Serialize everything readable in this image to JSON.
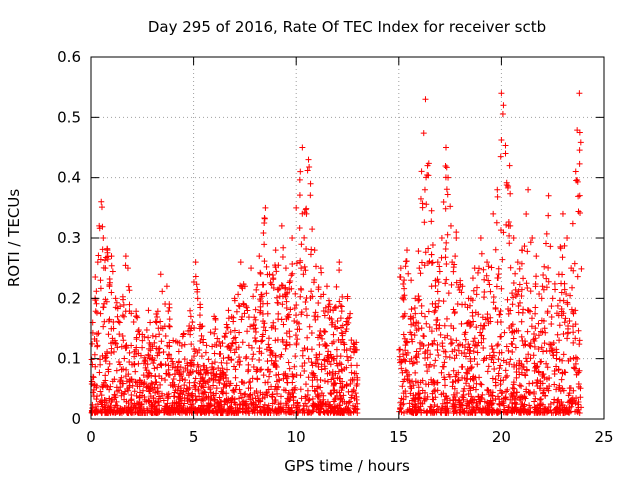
{
  "chart_data": {
    "type": "scatter",
    "title": "Day 295 of 2016, Rate Of TEC Index for receiver sctb",
    "xlabel": "GPS time / hours",
    "ylabel": "ROTI / TECUs",
    "xlim": [
      0,
      25
    ],
    "ylim": [
      0,
      0.6
    ],
    "x_ticks": [
      0,
      5,
      10,
      15,
      20,
      25
    ],
    "x_tick_labels": [
      "0",
      "5",
      "10",
      "15",
      "20",
      "25"
    ],
    "y_ticks": [
      0,
      0.1,
      0.2,
      0.3,
      0.4,
      0.5,
      0.6
    ],
    "y_tick_labels": [
      "0",
      "0.1",
      "0.2",
      "0.3",
      "0.4",
      "0.5",
      "0.6"
    ],
    "grid": true,
    "marker": "+",
    "color": "#ff0000",
    "data_gap_hours": [
      13.0,
      15.0
    ],
    "series": [
      {
        "name": "ROTI",
        "points": [
          [
            0.1,
            0.07
          ],
          [
            0.2,
            0.2
          ],
          [
            0.3,
            0.12
          ],
          [
            0.4,
            0.32
          ],
          [
            0.5,
            0.36
          ],
          [
            0.6,
            0.3
          ],
          [
            0.7,
            0.25
          ],
          [
            0.8,
            0.28
          ],
          [
            0.9,
            0.22
          ],
          [
            1.0,
            0.27
          ],
          [
            1.1,
            0.15
          ],
          [
            1.2,
            0.2
          ],
          [
            1.4,
            0.16
          ],
          [
            1.5,
            0.12
          ],
          [
            1.7,
            0.27
          ],
          [
            1.8,
            0.25
          ],
          [
            2.0,
            0.09
          ],
          [
            2.2,
            0.17
          ],
          [
            2.5,
            0.14
          ],
          [
            2.8,
            0.18
          ],
          [
            3.0,
            0.12
          ],
          [
            3.2,
            0.16
          ],
          [
            3.4,
            0.24
          ],
          [
            3.5,
            0.15
          ],
          [
            3.7,
            0.22
          ],
          [
            3.9,
            0.1
          ],
          [
            4.2,
            0.08
          ],
          [
            4.5,
            0.14
          ],
          [
            4.8,
            0.06
          ],
          [
            5.1,
            0.26
          ],
          [
            5.2,
            0.2
          ],
          [
            5.3,
            0.15
          ],
          [
            5.6,
            0.11
          ],
          [
            6.0,
            0.17
          ],
          [
            6.3,
            0.08
          ],
          [
            6.7,
            0.18
          ],
          [
            7.0,
            0.2
          ],
          [
            7.3,
            0.26
          ],
          [
            7.5,
            0.22
          ],
          [
            7.8,
            0.25
          ],
          [
            8.2,
            0.27
          ],
          [
            8.5,
            0.35
          ],
          [
            8.7,
            0.24
          ],
          [
            9.0,
            0.28
          ],
          [
            9.3,
            0.32
          ],
          [
            9.5,
            0.25
          ],
          [
            9.8,
            0.3
          ],
          [
            10.0,
            0.35
          ],
          [
            10.2,
            0.41
          ],
          [
            10.3,
            0.45
          ],
          [
            10.5,
            0.34
          ],
          [
            10.6,
            0.43
          ],
          [
            10.7,
            0.39
          ],
          [
            10.9,
            0.28
          ],
          [
            11.2,
            0.25
          ],
          [
            11.5,
            0.22
          ],
          [
            11.8,
            0.18
          ],
          [
            12.1,
            0.26
          ],
          [
            12.5,
            0.2
          ],
          [
            12.8,
            0.12
          ],
          [
            15.1,
            0.25
          ],
          [
            15.2,
            0.2
          ],
          [
            15.4,
            0.28
          ],
          [
            15.6,
            0.23
          ],
          [
            15.8,
            0.2
          ],
          [
            16.0,
            0.25
          ],
          [
            16.3,
            0.53
          ],
          [
            16.4,
            0.42
          ],
          [
            16.6,
            0.22
          ],
          [
            16.9,
            0.26
          ],
          [
            17.1,
            0.3
          ],
          [
            17.3,
            0.45
          ],
          [
            17.4,
            0.4
          ],
          [
            17.6,
            0.26
          ],
          [
            17.8,
            0.3
          ],
          [
            18.1,
            0.22
          ],
          [
            18.4,
            0.2
          ],
          [
            18.7,
            0.25
          ],
          [
            19.0,
            0.3
          ],
          [
            19.3,
            0.26
          ],
          [
            19.6,
            0.34
          ],
          [
            19.8,
            0.38
          ],
          [
            20.0,
            0.54
          ],
          [
            20.1,
            0.52
          ],
          [
            20.2,
            0.44
          ],
          [
            20.4,
            0.42
          ],
          [
            20.6,
            0.3
          ],
          [
            20.8,
            0.26
          ],
          [
            21.0,
            0.28
          ],
          [
            21.3,
            0.38
          ],
          [
            21.5,
            0.3
          ],
          [
            21.7,
            0.27
          ],
          [
            22.0,
            0.22
          ],
          [
            22.3,
            0.37
          ],
          [
            22.5,
            0.2
          ],
          [
            22.8,
            0.24
          ],
          [
            23.0,
            0.34
          ],
          [
            23.2,
            0.3
          ],
          [
            23.4,
            0.25
          ],
          [
            23.6,
            0.18
          ],
          [
            23.8,
            0.54
          ]
        ]
      }
    ]
  }
}
